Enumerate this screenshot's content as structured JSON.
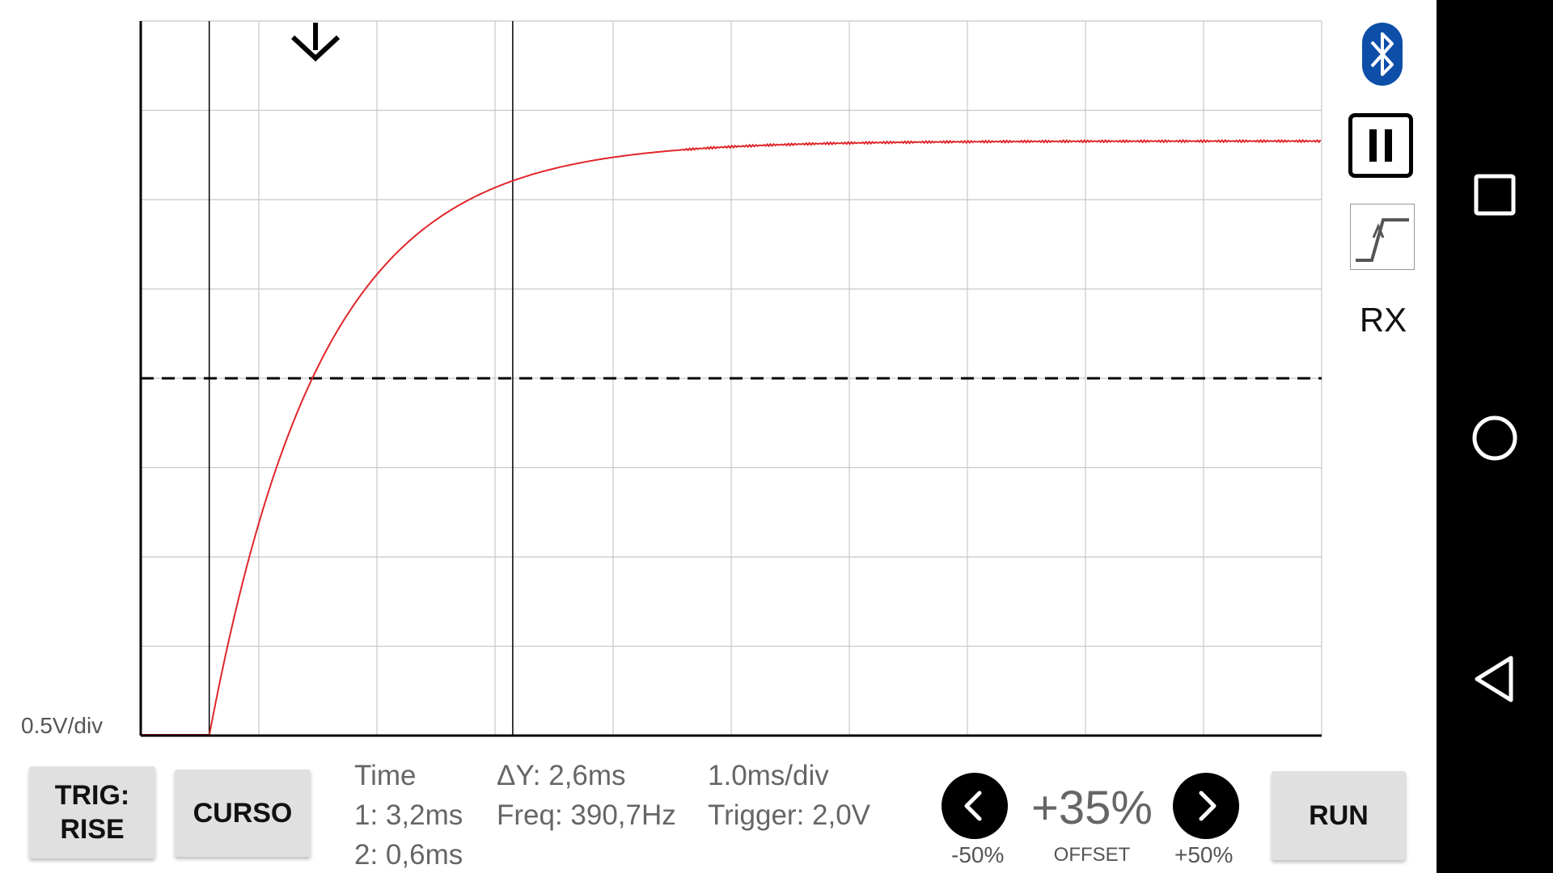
{
  "scope": {
    "volts_per_div_label": "0.5V/div",
    "grid": {
      "x_divisions": 10,
      "y_divisions": 8
    },
    "trigger_level_fraction_of_height": 0.5,
    "cursor_1_fraction": 0.058,
    "cursor_2_fraction": 0.315,
    "trigger_marker_fraction": 0.148,
    "trace_color": "#e0262a",
    "trace": {
      "start_fraction": 0.058,
      "time_constant_fraction": 0.095,
      "final_level_fraction": 0.832
    }
  },
  "buttons": {
    "trig_line1": "TRIG:",
    "trig_line2": "RISE",
    "cursor": "CURSO",
    "run": "RUN"
  },
  "readout": {
    "time_header": "Time",
    "cursor1": "1: 3,2ms",
    "cursor2": "2: 0,6ms",
    "delta_y": "ΔY: 2,6ms",
    "frequency": "Freq: 390,7Hz",
    "timebase": "1.0ms/div",
    "trigger": "Trigger: 2,0V"
  },
  "offset": {
    "value": "+35%",
    "label": "OFFSET",
    "minus_label": "-50%",
    "plus_label": "+50%"
  },
  "side_panel": {
    "rx_label": "RX",
    "bluetooth_color": "#0d4fa8"
  },
  "icons": [
    "bluetooth-icon",
    "pause-icon",
    "trigger-rise-icon",
    "recents-icon",
    "home-icon",
    "back-icon",
    "chevron-left-icon",
    "chevron-right-icon",
    "trigger-arrow-icon"
  ]
}
